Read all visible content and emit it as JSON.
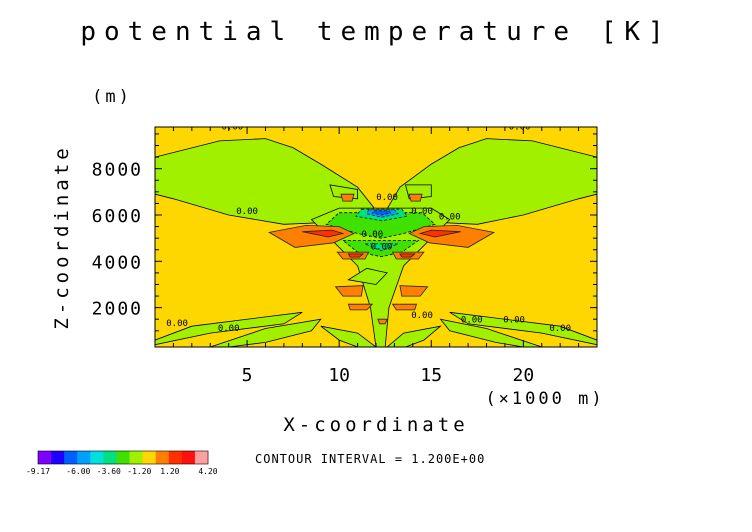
{
  "chart_data": {
    "type": "heatmap",
    "title": "potential temperature [K]",
    "xlabel": "X-coordinate",
    "xunit": "(×1000 m)",
    "ylabel": "Z-coordinate",
    "yunit": "(m)",
    "xlim": [
      0,
      24
    ],
    "ylim": [
      300,
      9800
    ],
    "xticks": [
      5,
      10,
      15,
      20
    ],
    "xtick_labels": [
      "5",
      "10",
      "15",
      "20"
    ],
    "yticks": [
      2000,
      4000,
      6000,
      8000
    ],
    "ytick_labels": [
      "2000",
      "4000",
      "6000",
      "8000"
    ],
    "background_level": 0.0,
    "contour_interval_text": "CONTOUR INTERVAL = 1.200E+00",
    "contour_labels": [
      "0.00",
      "0.00",
      "0.00",
      "0.00",
      "0.00",
      "0.00",
      "0.00",
      "0.00",
      "0.00",
      "0.00",
      "0.00",
      "0.00",
      "0.00",
      "0.00"
    ],
    "colorbar": {
      "colors": [
        "#8000ff",
        "#2000ff",
        "#0060ff",
        "#00a0ff",
        "#00e0e0",
        "#00e080",
        "#40e000",
        "#a0f000",
        "#ffd700",
        "#ff8000",
        "#ff3000",
        "#ff1010",
        "#ffa0a0"
      ],
      "tick_labels": [
        "-9.17",
        "-6.00",
        "-3.60",
        "-1.20",
        "1.20",
        "4.20"
      ],
      "tick_values": [
        -9.17,
        -6.0,
        -3.6,
        -1.2,
        1.2,
        4.2
      ],
      "min": -9.17,
      "max": 4.2
    },
    "regions": [
      {
        "level": 0.6,
        "color": "#a0f000",
        "points": [
          [
            0,
            8500
          ],
          [
            3.5,
            9200
          ],
          [
            6,
            9300
          ],
          [
            7.5,
            8900
          ],
          [
            9,
            8200
          ],
          [
            11,
            7200
          ],
          [
            12.2,
            6000
          ],
          [
            10,
            5700
          ],
          [
            7,
            5600
          ],
          [
            4,
            6000
          ],
          [
            1,
            6700
          ],
          [
            0,
            6900
          ]
        ]
      },
      {
        "level": 0.6,
        "color": "#a0f000",
        "points": [
          [
            24,
            8500
          ],
          [
            20.5,
            9200
          ],
          [
            18,
            9300
          ],
          [
            16.5,
            8900
          ],
          [
            15,
            8200
          ],
          [
            13.3,
            7200
          ],
          [
            12.4,
            6000
          ],
          [
            14.8,
            5700
          ],
          [
            17.5,
            5600
          ],
          [
            20,
            6000
          ],
          [
            23,
            6700
          ],
          [
            24,
            6900
          ]
        ]
      },
      {
        "level": 0.6,
        "color": "#a0f000",
        "points": [
          [
            10,
            6300
          ],
          [
            15,
            6300
          ],
          [
            16,
            5800
          ],
          [
            15,
            5000
          ],
          [
            13.5,
            3800
          ],
          [
            12.7,
            2000
          ],
          [
            12.5,
            300
          ],
          [
            12,
            300
          ],
          [
            11.7,
            2000
          ],
          [
            11,
            3800
          ],
          [
            9.5,
            5000
          ],
          [
            8.5,
            5800
          ]
        ]
      },
      {
        "level": -0.6,
        "color": "#40e000",
        "points": [
          [
            10,
            6100
          ],
          [
            14.5,
            6100
          ],
          [
            15.2,
            5600
          ],
          [
            13.5,
            5200
          ],
          [
            12.3,
            5000
          ],
          [
            11,
            5200
          ],
          [
            9.3,
            5600
          ]
        ]
      },
      {
        "level": -0.6,
        "color": "#40e000",
        "points": [
          [
            10.2,
            4900
          ],
          [
            14.3,
            4900
          ],
          [
            13.4,
            4400
          ],
          [
            12.3,
            4200
          ],
          [
            11,
            4400
          ]
        ]
      },
      {
        "level": -1.8,
        "color": "#00e080",
        "points": [
          [
            11.2,
            6250
          ],
          [
            13.4,
            6250
          ],
          [
            13.7,
            5950
          ],
          [
            12.3,
            5750
          ],
          [
            10.9,
            5950
          ]
        ]
      },
      {
        "level": -1.8,
        "color": "#00e080",
        "points": [
          [
            11.4,
            4750
          ],
          [
            13.2,
            4750
          ],
          [
            12.3,
            4450
          ]
        ]
      },
      {
        "level": -3.6,
        "color": "#00a0ff",
        "points": [
          [
            11.6,
            6220
          ],
          [
            13.0,
            6220
          ],
          [
            13.2,
            6050
          ],
          [
            12.3,
            5900
          ],
          [
            11.5,
            6050
          ]
        ]
      },
      {
        "level": -6.0,
        "color": "#0060ff",
        "points": [
          [
            11.9,
            6180
          ],
          [
            12.7,
            6180
          ],
          [
            12.8,
            6080
          ],
          [
            12.3,
            6000
          ],
          [
            11.8,
            6080
          ]
        ]
      },
      {
        "level": 0.6,
        "color": "#a0f000",
        "points": [
          [
            0,
            600
          ],
          [
            2,
            1200
          ],
          [
            6,
            1600
          ],
          [
            8,
            1800
          ],
          [
            7,
            1300
          ],
          [
            3,
            900
          ],
          [
            0,
            400
          ]
        ]
      },
      {
        "level": 0.6,
        "color": "#a0f000",
        "points": [
          [
            24,
            600
          ],
          [
            22,
            1200
          ],
          [
            18,
            1600
          ],
          [
            16,
            1800
          ],
          [
            17,
            1300
          ],
          [
            21,
            900
          ],
          [
            24,
            400
          ]
        ]
      },
      {
        "level": 0.6,
        "color": "#a0f000",
        "points": [
          [
            3,
            300
          ],
          [
            6,
            1100
          ],
          [
            9,
            1500
          ],
          [
            8.5,
            1000
          ],
          [
            6,
            500
          ],
          [
            4,
            300
          ]
        ]
      },
      {
        "level": 0.6,
        "color": "#a0f000",
        "points": [
          [
            21,
            300
          ],
          [
            18,
            1100
          ],
          [
            15.5,
            1500
          ],
          [
            16,
            1000
          ],
          [
            18.5,
            500
          ],
          [
            20,
            300
          ]
        ]
      },
      {
        "level": 0.6,
        "color": "#a0f000",
        "points": [
          [
            9,
            1200
          ],
          [
            11,
            900
          ],
          [
            12,
            300
          ],
          [
            11,
            300
          ],
          [
            10,
            600
          ]
        ]
      },
      {
        "level": 0.6,
        "color": "#a0f000",
        "points": [
          [
            15.5,
            1200
          ],
          [
            13.5,
            900
          ],
          [
            12.6,
            300
          ],
          [
            13.6,
            300
          ],
          [
            14.6,
            600
          ]
        ]
      },
      {
        "level": 0.6,
        "color": "#a0f000",
        "points": [
          [
            10.5,
            3200
          ],
          [
            12,
            3000
          ],
          [
            12.6,
            3500
          ],
          [
            11.5,
            3700
          ]
        ]
      },
      {
        "level": 0.6,
        "color": "#a0f000",
        "points": [
          [
            9.5,
            7300
          ],
          [
            11,
            7100
          ],
          [
            11,
            6700
          ],
          [
            9.7,
            6800
          ]
        ]
      },
      {
        "level": 0.6,
        "color": "#a0f000",
        "points": [
          [
            13.6,
            7300
          ],
          [
            15,
            7300
          ],
          [
            15,
            6800
          ],
          [
            13.8,
            6700
          ]
        ]
      },
      {
        "level": 1.8,
        "color": "#ff8000",
        "points": [
          [
            6.2,
            5250
          ],
          [
            8.2,
            5550
          ],
          [
            10,
            5500
          ],
          [
            10.8,
            5200
          ],
          [
            9.7,
            4800
          ],
          [
            7.6,
            4600
          ]
        ]
      },
      {
        "level": 1.8,
        "color": "#ff8000",
        "points": [
          [
            18.4,
            5250
          ],
          [
            16.4,
            5550
          ],
          [
            14.6,
            5500
          ],
          [
            13.8,
            5200
          ],
          [
            14.9,
            4800
          ],
          [
            17,
            4600
          ]
        ]
      },
      {
        "level": 1.8,
        "color": "#ff8000",
        "points": [
          [
            9.9,
            4400
          ],
          [
            11.6,
            4400
          ],
          [
            11.4,
            4100
          ],
          [
            10.2,
            4100
          ]
        ]
      },
      {
        "level": 1.8,
        "color": "#ff8000",
        "points": [
          [
            12.9,
            4400
          ],
          [
            14.6,
            4400
          ],
          [
            14.3,
            4100
          ],
          [
            13.1,
            4100
          ]
        ]
      },
      {
        "level": 1.8,
        "color": "#ff8000",
        "points": [
          [
            9.8,
            2900
          ],
          [
            11.3,
            2950
          ],
          [
            11.2,
            2500
          ],
          [
            10.2,
            2500
          ]
        ]
      },
      {
        "level": 1.8,
        "color": "#ff8000",
        "points": [
          [
            13.3,
            2950
          ],
          [
            14.8,
            2900
          ],
          [
            14.4,
            2500
          ],
          [
            13.4,
            2500
          ]
        ]
      },
      {
        "level": 1.8,
        "color": "#ff8000",
        "points": [
          [
            10.5,
            2150
          ],
          [
            11.8,
            2150
          ],
          [
            11.5,
            1900
          ],
          [
            10.6,
            1900
          ]
        ]
      },
      {
        "level": 1.8,
        "color": "#ff8000",
        "points": [
          [
            12.9,
            2150
          ],
          [
            14.2,
            2150
          ],
          [
            14.1,
            1900
          ],
          [
            13.1,
            1900
          ]
        ]
      },
      {
        "level": 1.8,
        "color": "#ff8000",
        "points": [
          [
            12.1,
            1500
          ],
          [
            12.6,
            1500
          ],
          [
            12.5,
            1300
          ],
          [
            12.2,
            1300
          ]
        ]
      },
      {
        "level": 1.8,
        "color": "#ff8000",
        "points": [
          [
            10.1,
            6900
          ],
          [
            10.8,
            6900
          ],
          [
            10.7,
            6600
          ],
          [
            10.2,
            6600
          ]
        ]
      },
      {
        "level": 1.8,
        "color": "#ff8000",
        "points": [
          [
            13.8,
            6900
          ],
          [
            14.5,
            6900
          ],
          [
            14.4,
            6600
          ],
          [
            13.9,
            6600
          ]
        ]
      },
      {
        "level": 3.0,
        "color": "#ff3000",
        "points": [
          [
            8.0,
            5280
          ],
          [
            9.6,
            5350
          ],
          [
            10.2,
            5200
          ],
          [
            9.4,
            5050
          ]
        ]
      },
      {
        "level": 3.0,
        "color": "#ff3000",
        "points": [
          [
            16.6,
            5280
          ],
          [
            15,
            5350
          ],
          [
            14.4,
            5200
          ],
          [
            15.2,
            5050
          ]
        ]
      },
      {
        "level": 3.0,
        "color": "#ff3000",
        "points": [
          [
            10.5,
            4320
          ],
          [
            11.3,
            4320
          ],
          [
            11.1,
            4180
          ],
          [
            10.6,
            4180
          ]
        ]
      },
      {
        "level": 3.0,
        "color": "#ff3000",
        "points": [
          [
            13.3,
            4320
          ],
          [
            14.1,
            4320
          ],
          [
            13.9,
            4180
          ],
          [
            13.4,
            4180
          ]
        ]
      }
    ]
  }
}
